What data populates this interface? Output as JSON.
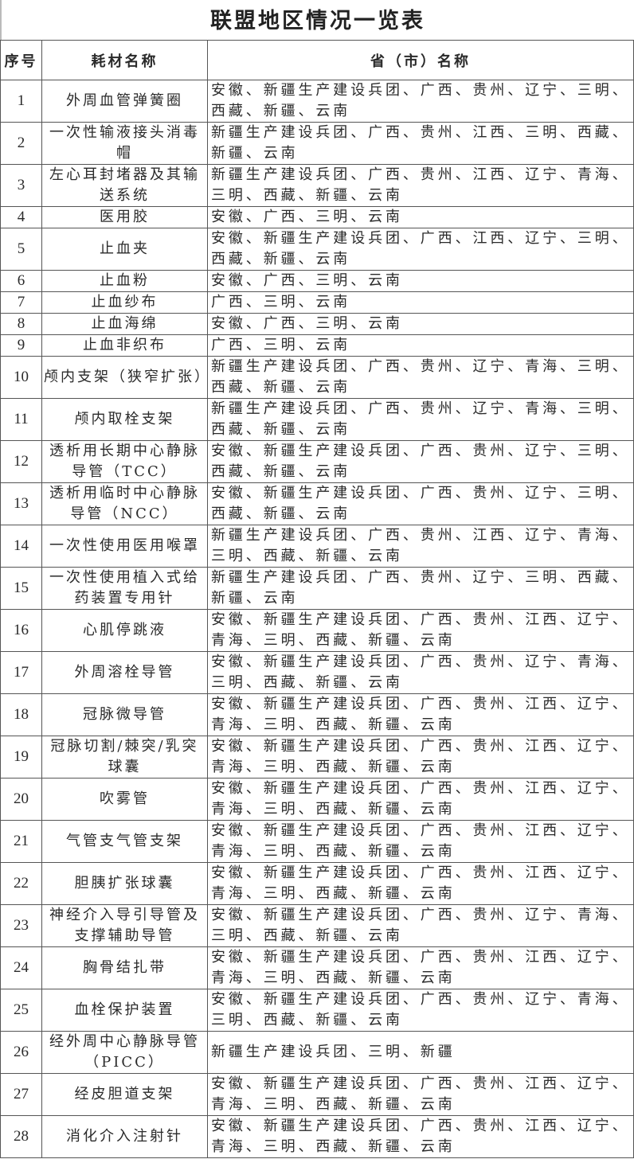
{
  "title": "联盟地区情况一览表",
  "headers": {
    "no": "序号",
    "name": "耗材名称",
    "provinces": "省（市）名称"
  },
  "rows": [
    {
      "no": "1",
      "name": "外周血管弹簧圈",
      "provinces": "安徽、新疆生产建设兵团、广西、贵州、辽宁、三明、西藏、新疆、云南"
    },
    {
      "no": "2",
      "name": "一次性输液接头消毒帽",
      "provinces": "新疆生产建设兵团、广西、贵州、江西、三明、西藏、新疆、云南"
    },
    {
      "no": "3",
      "name": "左心耳封堵器及其输送系统",
      "provinces": "新疆生产建设兵团、广西、贵州、江西、辽宁、青海、三明、西藏、新疆、云南"
    },
    {
      "no": "4",
      "name": "医用胶",
      "provinces": "安徽、广西、三明、云南"
    },
    {
      "no": "5",
      "name": "止血夹",
      "provinces": "安徽、新疆生产建设兵团、广西、江西、辽宁、三明、西藏、新疆、云南"
    },
    {
      "no": "6",
      "name": "止血粉",
      "provinces": "安徽、广西、三明、云南"
    },
    {
      "no": "7",
      "name": "止血纱布",
      "provinces": "广西、三明、云南"
    },
    {
      "no": "8",
      "name": "止血海绵",
      "provinces": "安徽、广西、三明、云南"
    },
    {
      "no": "9",
      "name": "止血非织布",
      "provinces": "广西、三明、云南"
    },
    {
      "no": "10",
      "name": "颅内支架（狭窄扩张）",
      "provinces": "新疆生产建设兵团、广西、贵州、辽宁、青海、三明、西藏、新疆、云南"
    },
    {
      "no": "11",
      "name": "颅内取栓支架",
      "provinces": "新疆生产建设兵团、广西、贵州、辽宁、青海、三明、西藏、新疆、云南"
    },
    {
      "no": "12",
      "name": "透析用长期中心静脉导管（TCC）",
      "provinces": "安徽、新疆生产建设兵团、广西、贵州、辽宁、三明、西藏、新疆、云南"
    },
    {
      "no": "13",
      "name": "透析用临时中心静脉导管（NCC）",
      "provinces": "安徽、新疆生产建设兵团、广西、贵州、辽宁、三明、西藏、新疆、云南"
    },
    {
      "no": "14",
      "name": "一次性使用医用喉罩",
      "provinces": "新疆生产建设兵团、广西、贵州、江西、辽宁、青海、三明、西藏、新疆、云南"
    },
    {
      "no": "15",
      "name": "一次性使用植入式给药装置专用针",
      "provinces": "新疆生产建设兵团、广西、贵州、辽宁、三明、西藏、新疆、云南"
    },
    {
      "no": "16",
      "name": "心肌停跳液",
      "provinces": "安徽、新疆生产建设兵团、广西、贵州、江西、辽宁、青海、三明、西藏、新疆、云南"
    },
    {
      "no": "17",
      "name": "外周溶栓导管",
      "provinces": "安徽、新疆生产建设兵团、广西、贵州、辽宁、青海、三明、西藏、新疆、云南"
    },
    {
      "no": "18",
      "name": "冠脉微导管",
      "provinces": "安徽、新疆生产建设兵团、广西、贵州、江西、辽宁、青海、三明、西藏、新疆、云南"
    },
    {
      "no": "19",
      "name": "冠脉切割/棘突/乳突球囊",
      "provinces": "安徽、新疆生产建设兵团、广西、贵州、江西、辽宁、青海、三明、西藏、新疆、云南"
    },
    {
      "no": "20",
      "name": "吹雾管",
      "provinces": "安徽、新疆生产建设兵团、广西、贵州、江西、辽宁、青海、三明、西藏、新疆、云南"
    },
    {
      "no": "21",
      "name": "气管支气管支架",
      "provinces": "安徽、新疆生产建设兵团、广西、贵州、江西、辽宁、青海、三明、西藏、新疆、云南"
    },
    {
      "no": "22",
      "name": "胆胰扩张球囊",
      "provinces": "安徽、新疆生产建设兵团、广西、贵州、江西、辽宁、青海、三明、西藏、新疆、云南"
    },
    {
      "no": "23",
      "name": "神经介入导引导管及支撑辅助导管",
      "provinces": "安徽、新疆生产建设兵团、广西、贵州、辽宁、青海、三明、西藏、新疆、云南"
    },
    {
      "no": "24",
      "name": "胸骨结扎带",
      "provinces": "安徽、新疆生产建设兵团、广西、贵州、江西、辽宁、青海、三明、西藏、新疆、云南"
    },
    {
      "no": "25",
      "name": "血栓保护装置",
      "provinces": "安徽、新疆生产建设兵团、广西、贵州、辽宁、青海、三明、西藏、新疆、云南"
    },
    {
      "no": "26",
      "name": "经外周中心静脉导管（PICC）",
      "provinces": "新疆生产建设兵团、三明、新疆"
    },
    {
      "no": "27",
      "name": "经皮胆道支架",
      "provinces": "安徽、新疆生产建设兵团、广西、贵州、江西、辽宁、青海、三明、西藏、新疆、云南"
    },
    {
      "no": "28",
      "name": "消化介入注射针",
      "provinces": "安徽、新疆生产建设兵团、广西、贵州、江西、辽宁、青海、三明、西藏、新疆、云南"
    }
  ]
}
